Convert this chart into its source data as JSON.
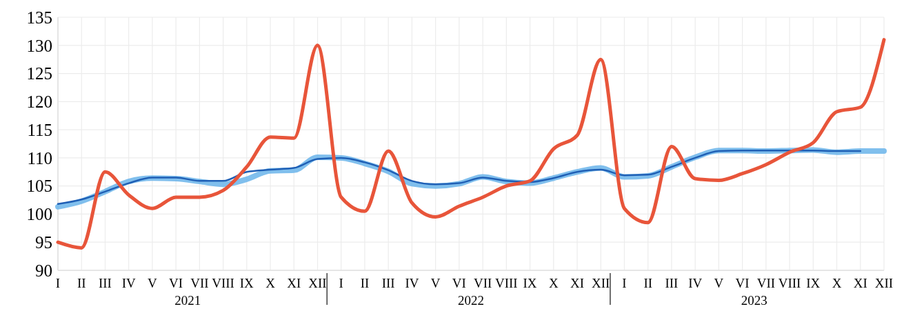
{
  "chart_data": {
    "type": "line",
    "categories": [
      "I",
      "II",
      "III",
      "IV",
      "V",
      "VI",
      "VII",
      "VIII",
      "IX",
      "X",
      "XI",
      "XII",
      "I",
      "II",
      "III",
      "IV",
      "V",
      "VI",
      "VII",
      "VIII",
      "IX",
      "X",
      "XI",
      "XII",
      "I",
      "II",
      "III",
      "IV",
      "V",
      "VI",
      "VII",
      "VIII",
      "IX",
      "X",
      "XI",
      "XII"
    ],
    "series": [
      {
        "color": "#6ab4ea",
        "values": [
          101.3,
          102.3,
          104,
          105.8,
          106.4,
          106.3,
          105.8,
          105.3,
          106.2,
          107.7,
          107.8,
          110.1,
          110,
          109,
          107.6,
          105.4,
          105,
          105.4,
          106.6,
          105.8,
          105.5,
          106.4,
          107.5,
          108.2,
          106.6,
          106.8,
          108.4,
          110.1,
          111.3,
          111.3,
          111.2,
          111.3,
          111.4,
          111,
          111.2,
          111.2
        ]
      },
      {
        "color": "#1f5fb5",
        "values": [
          101.8,
          102.6,
          104,
          105.5,
          106.5,
          106.5,
          105.9,
          105.9,
          107.5,
          107.9,
          108.2,
          109.8,
          110,
          109.2,
          107.8,
          105.9,
          105.3,
          105.5,
          106.5,
          105.9,
          105.7,
          106.4,
          107.5,
          107.9,
          106.9,
          107,
          108.4,
          110,
          111.2,
          111.3,
          111.3,
          111.3,
          111.3,
          111.2,
          111.2,
          null
        ]
      },
      {
        "color": "#e8553a",
        "values": [
          95,
          94,
          107.5,
          103.4,
          101,
          103,
          103,
          104.2,
          108.4,
          113.7,
          113.5,
          130,
          103,
          100.5,
          111.2,
          102,
          99.5,
          101.4,
          103,
          105,
          105.9,
          111.6,
          114,
          127.5,
          101,
          98.5,
          112,
          106.3,
          106,
          107.2,
          108.8,
          111,
          112.7,
          118.2,
          119,
          131
        ]
      }
    ],
    "ylim": [
      90,
      135
    ],
    "yticks": [
      90,
      95,
      100,
      105,
      110,
      115,
      120,
      125,
      130,
      135
    ],
    "grid": true,
    "annotations": [
      "2021",
      "2022",
      "2023"
    ]
  }
}
